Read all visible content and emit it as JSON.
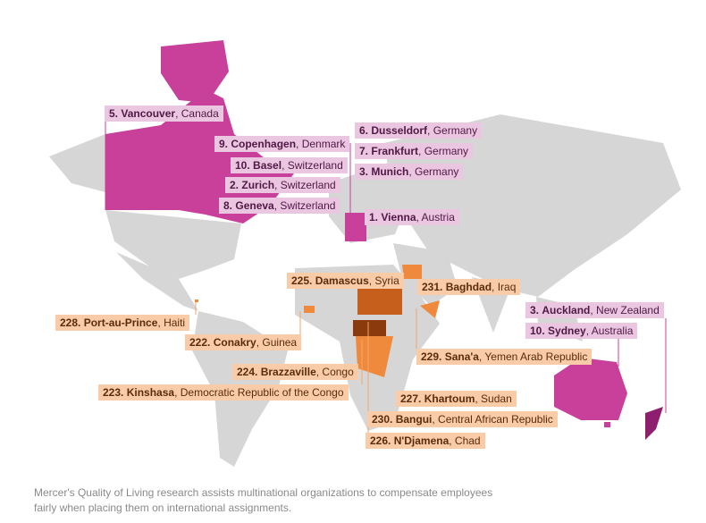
{
  "colors": {
    "land": "#d6d6d6",
    "top_ranked": "#c8409a",
    "top_ranked_dark": "#8e1f6e",
    "bottom_ranked": "#ef8a3c",
    "bottom_ranked_dark": "#a8460f",
    "top_label_bg": "#ebc6e0",
    "bottom_label_bg": "#f9cba6"
  },
  "top_cities": [
    {
      "rank": "5.",
      "city": "Vancouver",
      "country": "Canada"
    },
    {
      "rank": "9.",
      "city": "Copenhagen",
      "country": "Denmark"
    },
    {
      "rank": "10.",
      "city": "Basel",
      "country": "Switzerland"
    },
    {
      "rank": "2.",
      "city": "Zurich",
      "country": "Switzerland"
    },
    {
      "rank": "8.",
      "city": "Geneva",
      "country": "Switzerland"
    },
    {
      "rank": "6.",
      "city": "Dusseldorf",
      "country": "Germany"
    },
    {
      "rank": "7.",
      "city": "Frankfurt",
      "country": "Germany"
    },
    {
      "rank": "3.",
      "city": "Munich",
      "country": "Germany"
    },
    {
      "rank": "1.",
      "city": "Vienna",
      "country": "Austria"
    },
    {
      "rank": "3.",
      "city": "Auckland",
      "country": "New Zealand"
    },
    {
      "rank": "10.",
      "city": "Sydney",
      "country": "Australia"
    }
  ],
  "bottom_cities": [
    {
      "rank": "225.",
      "city": "Damascus",
      "country": "Syria"
    },
    {
      "rank": "231.",
      "city": "Baghdad",
      "country": "Iraq"
    },
    {
      "rank": "228.",
      "city": "Port-au-Prince",
      "country": "Haiti"
    },
    {
      "rank": "222.",
      "city": "Conakry",
      "country": "Guinea"
    },
    {
      "rank": "224.",
      "city": "Brazzaville",
      "country": "Congo"
    },
    {
      "rank": "223.",
      "city": "Kinshasa",
      "country": "Democratic Republic of the Congo"
    },
    {
      "rank": "229.",
      "city": "Sana'a",
      "country": "Yemen Arab Republic"
    },
    {
      "rank": "227.",
      "city": "Khartoum",
      "country": "Sudan"
    },
    {
      "rank": "230.",
      "city": "Bangui",
      "country": "Central African Republic"
    },
    {
      "rank": "226.",
      "city": "N'Djamena",
      "country": "Chad"
    }
  ],
  "caption": "Mercer's Quality of Living research assists multinational organizations to compensate employees fairly when placing them on international assignments."
}
